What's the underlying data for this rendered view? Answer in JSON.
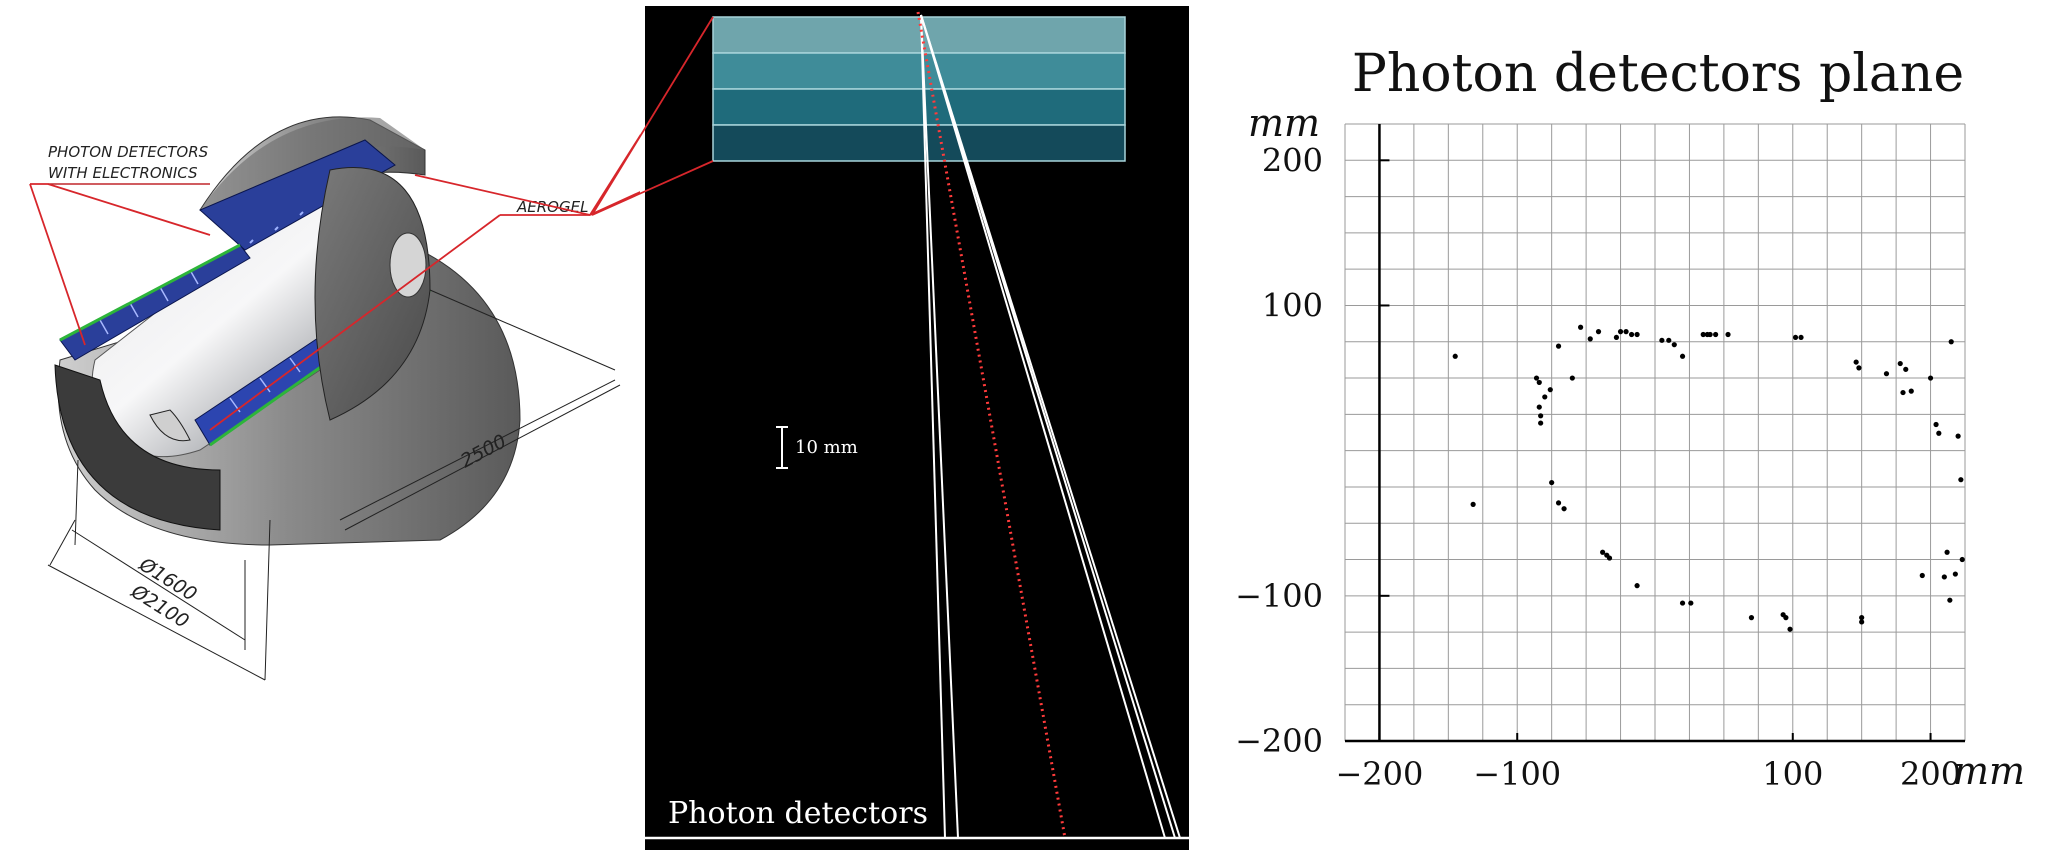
{
  "left_panel": {
    "label_photon_detectors_line1": "PHOTON DETECTORS",
    "label_photon_detectors_line2": "WITH ELECTRONICS",
    "label_aerogel": "AEROGEL",
    "dim_length": "2500",
    "dim_inner_diameter": "Ø1600",
    "dim_outer_diameter": "Ø2100"
  },
  "middle_panel": {
    "scale_label": "10 mm",
    "bottom_label": "Photon detectors"
  },
  "chart_data": {
    "type": "scatter",
    "title": "Photon detectors plane",
    "xlabel": "mm",
    "ylabel": "mm",
    "xlim": [
      -225,
      225
    ],
    "ylim": [
      -200,
      225
    ],
    "xticks": [
      -200,
      -100,
      100,
      200
    ],
    "xtick_labels": [
      "−200",
      "−100",
      "100",
      "200"
    ],
    "yticks": [
      200,
      100,
      -100,
      -200
    ],
    "ytick_labels": [
      "200",
      "100",
      "−100",
      "−200"
    ],
    "grid": true,
    "points": [
      [
        -145,
        65
      ],
      [
        -132,
        -37
      ],
      [
        -86,
        50
      ],
      [
        -84,
        47
      ],
      [
        -84,
        30
      ],
      [
        -83,
        24
      ],
      [
        -83,
        19
      ],
      [
        -80,
        37
      ],
      [
        -76,
        42
      ],
      [
        -75,
        -22
      ],
      [
        -70,
        72
      ],
      [
        -70,
        -36
      ],
      [
        -66,
        -40
      ],
      [
        -60,
        50
      ],
      [
        -54,
        85
      ],
      [
        -47,
        77
      ],
      [
        -41,
        82
      ],
      [
        -38,
        -70
      ],
      [
        -35,
        -72
      ],
      [
        -33,
        -74
      ],
      [
        -28,
        78
      ],
      [
        -25,
        82
      ],
      [
        -21,
        82
      ],
      [
        -17,
        80
      ],
      [
        -13,
        80
      ],
      [
        5,
        76
      ],
      [
        10,
        76
      ],
      [
        14,
        73
      ],
      [
        20,
        65
      ],
      [
        -13,
        -93
      ],
      [
        20,
        -105
      ],
      [
        26,
        -105
      ],
      [
        35,
        80
      ],
      [
        38,
        80
      ],
      [
        40,
        80
      ],
      [
        44,
        80
      ],
      [
        53,
        80
      ],
      [
        70,
        -115
      ],
      [
        93,
        -113
      ],
      [
        95,
        -115
      ],
      [
        98,
        -123
      ],
      [
        102,
        78
      ],
      [
        106,
        78
      ],
      [
        146,
        61
      ],
      [
        148,
        57
      ],
      [
        168,
        53
      ],
      [
        150,
        -115
      ],
      [
        150,
        -118
      ],
      [
        178,
        60
      ],
      [
        180,
        40
      ],
      [
        182,
        56
      ],
      [
        186,
        41
      ],
      [
        194,
        -86
      ],
      [
        200,
        50
      ],
      [
        204,
        18
      ],
      [
        206,
        12
      ],
      [
        210,
        -87
      ],
      [
        212,
        -70
      ],
      [
        215,
        75
      ],
      [
        214,
        -103
      ],
      [
        218,
        -85
      ],
      [
        220,
        10
      ],
      [
        222,
        -20
      ],
      [
        223,
        -75
      ]
    ]
  }
}
